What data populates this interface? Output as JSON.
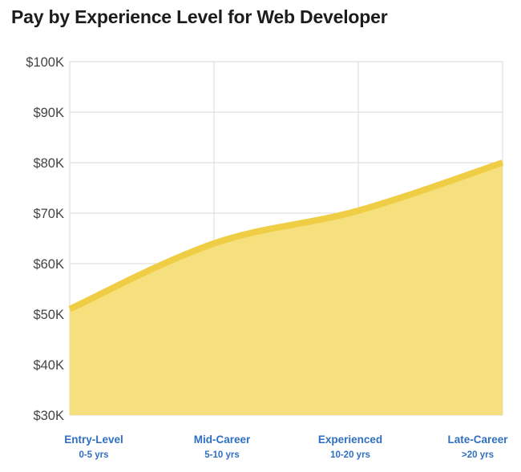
{
  "title": "Pay by Experience Level for Web Developer",
  "chart_data": {
    "type": "area",
    "title": "Pay by Experience Level for Web Developer",
    "categories": [
      "Entry-Level",
      "Mid-Career",
      "Experienced",
      "Late-Career"
    ],
    "category_sublabels": [
      "0-5 yrs",
      "5-10 yrs",
      "10-20 yrs",
      ">20 yrs"
    ],
    "series": [
      {
        "values": [
          51000,
          64000,
          70500,
          80000
        ]
      }
    ],
    "y_tick_labels": [
      "$30K",
      "$40K",
      "$50K",
      "$60K",
      "$70K",
      "$80K",
      "$90K",
      "$100K"
    ],
    "y_ticks": [
      30000,
      40000,
      50000,
      60000,
      70000,
      80000,
      90000,
      100000
    ],
    "ylim": [
      30000,
      100000
    ],
    "grid": true,
    "legend": "none",
    "colors": {
      "fill": "#f5e07d",
      "line": "#efcd45",
      "grid": "#d9d9d9",
      "category_text": "#2f6fc0"
    }
  }
}
